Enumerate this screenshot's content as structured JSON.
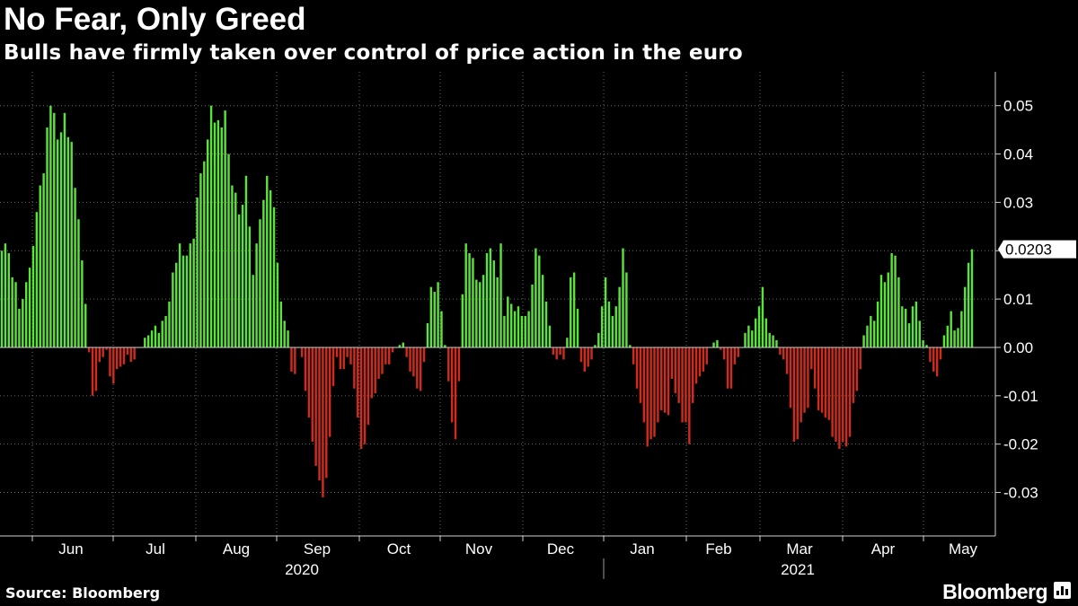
{
  "title": "No Fear, Only Greed",
  "subtitle": "Bulls have firmly taken over control of price action in the euro",
  "source": "Source: Bloomberg",
  "brand": "Bloomberg",
  "brand_icon": "bloomberg-chart-icon",
  "colors": {
    "positive": "#5be33a",
    "negative": "#d02b1c",
    "background": "#000000",
    "grid": "#6a6a6a",
    "text": "#ffffff"
  },
  "chart_data": {
    "type": "bar",
    "ylim": [
      -0.039,
      0.057
    ],
    "yticks": [
      "0.05",
      "0.04",
      "0.03",
      "0.02",
      "0.01",
      "0.00",
      "-0.01",
      "-0.02",
      "-0.03"
    ],
    "ytick_values": [
      0.05,
      0.04,
      0.03,
      0.02,
      0.01,
      0.0,
      -0.01,
      -0.02,
      -0.03
    ],
    "last_value_label": "0.0203",
    "grid": true,
    "month_labels": [
      "Jun",
      "Jul",
      "Aug",
      "Sep",
      "Oct",
      "Nov",
      "Dec",
      "Jan",
      "Feb",
      "Mar",
      "Apr",
      "May"
    ],
    "year_labels": [
      "2020",
      "2021"
    ],
    "values": [
      0.02,
      0.0215,
      0.0195,
      0.0145,
      0.0135,
      0.008,
      0.01,
      0.0135,
      0.0165,
      0.021,
      0.028,
      0.0335,
      0.036,
      0.0455,
      0.05,
      0.0485,
      0.043,
      0.0445,
      0.0485,
      0.0435,
      0.0425,
      0.033,
      0.0265,
      0.018,
      0.009,
      -0.001,
      -0.01,
      -0.009,
      -0.003,
      -0.002,
      -0.0005,
      -0.006,
      -0.0075,
      -0.0045,
      -0.004,
      -0.0035,
      -0.0015,
      -0.003,
      -0.0025,
      0.0,
      0.0,
      0.002,
      0.0025,
      0.0035,
      0.0045,
      0.003,
      0.0055,
      0.0065,
      0.0095,
      0.0155,
      0.0175,
      0.0215,
      0.019,
      0.019,
      0.0215,
      0.0225,
      0.031,
      0.036,
      0.0385,
      0.043,
      0.05,
      0.0465,
      0.047,
      0.0455,
      0.049,
      0.04,
      0.0335,
      0.032,
      0.0275,
      0.0295,
      0.0355,
      0.025,
      0.015,
      0.0215,
      0.0265,
      0.0305,
      0.0355,
      0.0325,
      0.029,
      0.0175,
      0.0095,
      0.0055,
      0.0035,
      -0.005,
      -0.0055,
      0.0,
      -0.002,
      -0.009,
      -0.0145,
      -0.0195,
      -0.0245,
      -0.0275,
      -0.031,
      -0.027,
      -0.0185,
      -0.008,
      -0.002,
      -0.0045,
      -0.0045,
      -0.002,
      -0.0035,
      -0.0085,
      -0.0145,
      -0.021,
      -0.02,
      -0.016,
      -0.0105,
      -0.0095,
      -0.0065,
      -0.0055,
      -0.0035,
      -0.0035,
      -0.001,
      0.0,
      0.0005,
      0.001,
      -0.002,
      -0.005,
      -0.006,
      -0.0085,
      -0.009,
      -0.003,
      0.005,
      0.0125,
      0.0115,
      0.0135,
      0.0075,
      0.0005,
      -0.007,
      -0.0155,
      -0.019,
      -0.007,
      0.011,
      0.0215,
      0.0195,
      0.0185,
      0.014,
      0.0135,
      0.015,
      0.0195,
      0.0205,
      0.018,
      0.0145,
      0.0215,
      0.0065,
      0.0105,
      0.009,
      0.0075,
      0.0085,
      0.0065,
      0.0065,
      0.0075,
      0.013,
      0.0205,
      0.019,
      0.015,
      0.0095,
      0.0045,
      -0.0015,
      -0.0025,
      -0.0015,
      -0.0025,
      0.002,
      0.0145,
      0.0155,
      0.008,
      -0.003,
      -0.005,
      -0.004,
      -0.0025,
      0.0005,
      0.003,
      0.0085,
      0.0145,
      0.0095,
      0.0065,
      0.0085,
      0.0125,
      0.0205,
      0.0155,
      0.0005,
      -0.0035,
      -0.0085,
      -0.0115,
      -0.0155,
      -0.0205,
      -0.019,
      -0.0185,
      -0.0155,
      -0.013,
      -0.0135,
      -0.014,
      -0.0065,
      -0.0095,
      -0.0115,
      -0.0155,
      -0.0155,
      -0.02,
      -0.0115,
      -0.0075,
      -0.006,
      -0.005,
      -0.0035,
      0.0,
      0.001,
      0.0015,
      -0.0005,
      -0.0025,
      -0.0085,
      -0.0085,
      -0.0035,
      -0.002,
      0.0,
      0.003,
      0.0045,
      0.0035,
      0.006,
      0.0085,
      0.0125,
      0.006,
      0.003,
      0.0025,
      0.0015,
      -0.0015,
      -0.0025,
      -0.0055,
      -0.0125,
      -0.0195,
      -0.019,
      -0.0155,
      -0.0135,
      -0.0125,
      -0.0045,
      -0.0085,
      -0.013,
      -0.0135,
      -0.0145,
      -0.015,
      -0.0185,
      -0.0195,
      -0.021,
      -0.0195,
      -0.0205,
      -0.0185,
      -0.0115,
      -0.009,
      -0.0045,
      0.0025,
      0.0045,
      0.0065,
      0.0055,
      0.0095,
      0.015,
      0.0135,
      0.0155,
      0.0195,
      0.019,
      0.0145,
      0.0085,
      0.008,
      0.005,
      0.0085,
      0.0095,
      0.0055,
      0.0015,
      0.0005,
      -0.003,
      -0.005,
      -0.006,
      -0.0025,
      0.0025,
      0.0045,
      0.0075,
      0.0035,
      0.004,
      0.0075,
      0.0125,
      0.0175,
      0.0203
    ]
  }
}
